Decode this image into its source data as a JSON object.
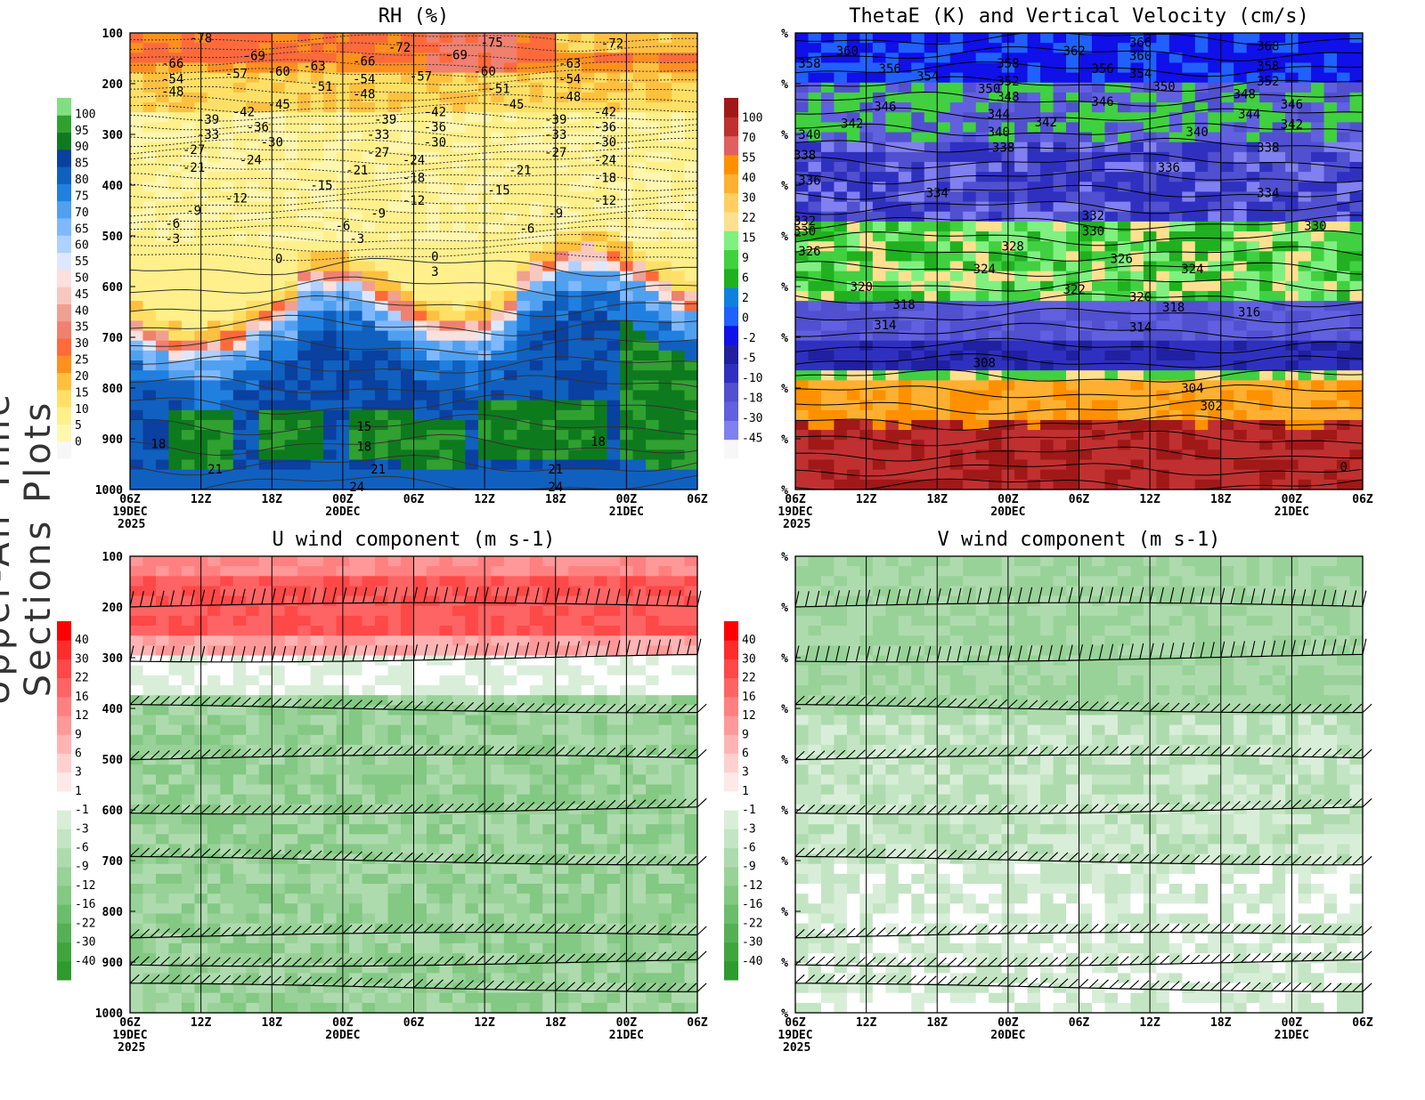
{
  "page": {
    "side_title": "Upper-Air Time Sections Plots"
  },
  "time_axis": {
    "ticks": [
      "06Z",
      "12Z",
      "18Z",
      "00Z",
      "06Z",
      "12Z",
      "18Z",
      "00Z",
      "06Z"
    ],
    "date_labels": [
      "19DEC",
      "",
      "",
      "20DEC",
      "",
      "",
      "",
      "21DEC",
      ""
    ],
    "year_label": "2025"
  },
  "colors": {
    "rh_scale": [
      "#f7f7f7",
      "#fff6b0",
      "#fff08c",
      "#ffe066",
      "#ffc040",
      "#ff9020",
      "#ff6a3a",
      "#f08070",
      "#f0a090",
      "#f8c8c0",
      "#fbe0dc",
      "#dde8ff",
      "#b0d0ff",
      "#80b8ff",
      "#50a0f0",
      "#2080e0",
      "#1060c0",
      "#0a40a0",
      "#0e7a1e",
      "#30a030",
      "#80e080"
    ],
    "thetae_scale": [
      "#f7f7f7",
      "#8080f0",
      "#6060e0",
      "#5050d0",
      "#3030c0",
      "#2020a0",
      "#1010e8",
      "#2060ff",
      "#1080e0",
      "#20b020",
      "#40d040",
      "#80f080",
      "#ffe090",
      "#ffd060",
      "#ffb030",
      "#ff9000",
      "#e06060",
      "#c03030",
      "#a01818"
    ],
    "wind_scale": [
      "#2f9a2f",
      "#3fa63f",
      "#55b055",
      "#6bbd6b",
      "#83c883",
      "#98d298",
      "#aedbae",
      "#c3e5c3",
      "#d9eed9",
      "#ffffff",
      "#ffe8e8",
      "#ffd0d0",
      "#ffb4b4",
      "#ff9898",
      "#ff8080",
      "#ff6464",
      "#ff4848",
      "#ff2c2c",
      "#ff0000"
    ]
  },
  "chart_data": [
    {
      "type": "heatmap",
      "title": "RH (%)",
      "yticks": [
        "100",
        "200",
        "300",
        "400",
        "500",
        "600",
        "700",
        "800",
        "900",
        "1000"
      ],
      "colorbar_labels": [
        "0",
        "5",
        "10",
        "15",
        "20",
        "25",
        "30",
        "35",
        "40",
        "45",
        "50",
        "55",
        "60",
        "65",
        "70",
        "75",
        "80",
        "85",
        "90",
        "95",
        "100"
      ],
      "y_units": "hPa",
      "temperature_contours": [
        {
          "label": "-78",
          "time": 1.0,
          "p": 110
        },
        {
          "label": "-69",
          "time": 1.75,
          "p": 145
        },
        {
          "label": "-66",
          "time": 0.6,
          "p": 160
        },
        {
          "label": "-60",
          "time": 2.1,
          "p": 175
        },
        {
          "label": "-57",
          "time": 1.5,
          "p": 180
        },
        {
          "label": "-63",
          "time": 2.6,
          "p": 165
        },
        {
          "label": "-66",
          "time": 3.3,
          "p": 155
        },
        {
          "label": "-72",
          "time": 3.8,
          "p": 128
        },
        {
          "label": "-69",
          "time": 4.6,
          "p": 143
        },
        {
          "label": "-75",
          "time": 5.1,
          "p": 118
        },
        {
          "label": "-72",
          "time": 6.8,
          "p": 120
        },
        {
          "label": "-60",
          "time": 5.0,
          "p": 175
        },
        {
          "label": "-57",
          "time": 4.1,
          "p": 185
        },
        {
          "label": "-63",
          "time": 6.2,
          "p": 160
        },
        {
          "label": "-54",
          "time": 0.6,
          "p": 190
        },
        {
          "label": "-54",
          "time": 3.3,
          "p": 190
        },
        {
          "label": "-54",
          "time": 6.2,
          "p": 190
        },
        {
          "label": "-51",
          "time": 2.7,
          "p": 205
        },
        {
          "label": "-51",
          "time": 5.2,
          "p": 210
        },
        {
          "label": "-48",
          "time": 0.6,
          "p": 215
        },
        {
          "label": "-48",
          "time": 3.3,
          "p": 220
        },
        {
          "label": "-48",
          "time": 6.2,
          "p": 225
        },
        {
          "label": "-45",
          "time": 2.1,
          "p": 240
        },
        {
          "label": "-45",
          "time": 5.4,
          "p": 240
        },
        {
          "label": "-42",
          "time": 1.6,
          "p": 255
        },
        {
          "label": "-42",
          "time": 4.3,
          "p": 255
        },
        {
          "label": "-42",
          "time": 6.7,
          "p": 255
        },
        {
          "label": "-39",
          "time": 1.1,
          "p": 270
        },
        {
          "label": "-39",
          "time": 3.6,
          "p": 270
        },
        {
          "label": "-39",
          "time": 6.0,
          "p": 270
        },
        {
          "label": "-36",
          "time": 1.8,
          "p": 285
        },
        {
          "label": "-36",
          "time": 4.3,
          "p": 285
        },
        {
          "label": "-36",
          "time": 6.7,
          "p": 285
        },
        {
          "label": "-33",
          "time": 1.1,
          "p": 300
        },
        {
          "label": "-33",
          "time": 3.5,
          "p": 300
        },
        {
          "label": "-33",
          "time": 6.0,
          "p": 300
        },
        {
          "label": "-30",
          "time": 2.0,
          "p": 315
        },
        {
          "label": "-30",
          "time": 4.3,
          "p": 315
        },
        {
          "label": "-30",
          "time": 6.7,
          "p": 315
        },
        {
          "label": "-27",
          "time": 0.9,
          "p": 330
        },
        {
          "label": "-27",
          "time": 3.5,
          "p": 335
        },
        {
          "label": "-27",
          "time": 6.0,
          "p": 335
        },
        {
          "label": "-24",
          "time": 1.7,
          "p": 350
        },
        {
          "label": "-24",
          "time": 4.0,
          "p": 350
        },
        {
          "label": "-24",
          "time": 6.7,
          "p": 350
        },
        {
          "label": "-21",
          "time": 0.9,
          "p": 365
        },
        {
          "label": "-21",
          "time": 3.2,
          "p": 370
        },
        {
          "label": "-21",
          "time": 5.5,
          "p": 370
        },
        {
          "label": "-18",
          "time": 4.0,
          "p": 385
        },
        {
          "label": "-18",
          "time": 6.7,
          "p": 385
        },
        {
          "label": "-15",
          "time": 2.7,
          "p": 400
        },
        {
          "label": "-15",
          "time": 5.2,
          "p": 410
        },
        {
          "label": "-12",
          "time": 1.5,
          "p": 425
        },
        {
          "label": "-12",
          "time": 4.0,
          "p": 430
        },
        {
          "label": "-12",
          "time": 6.7,
          "p": 430
        },
        {
          "label": "-9",
          "time": 0.9,
          "p": 450
        },
        {
          "label": "-9",
          "time": 3.5,
          "p": 455
        },
        {
          "label": "-9",
          "time": 6.0,
          "p": 455
        },
        {
          "label": "-6",
          "time": 0.6,
          "p": 475
        },
        {
          "label": "-6",
          "time": 3.0,
          "p": 480
        },
        {
          "label": "-6",
          "time": 5.6,
          "p": 485
        },
        {
          "label": "-3",
          "time": 0.6,
          "p": 505
        },
        {
          "label": "-3",
          "time": 3.2,
          "p": 505
        },
        {
          "label": "0",
          "time": 2.1,
          "p": 545
        },
        {
          "label": "0",
          "time": 4.3,
          "p": 540
        },
        {
          "label": "3",
          "time": 4.3,
          "p": 570
        },
        {
          "label": "15",
          "time": 3.3,
          "p": 875
        },
        {
          "label": "18",
          "time": 0.4,
          "p": 910
        },
        {
          "label": "18",
          "time": 3.3,
          "p": 915
        },
        {
          "label": "18",
          "time": 6.6,
          "p": 905
        },
        {
          "label": "21",
          "time": 1.2,
          "p": 960
        },
        {
          "label": "21",
          "time": 3.5,
          "p": 960
        },
        {
          "label": "21",
          "time": 6.0,
          "p": 960
        },
        {
          "label": "24",
          "time": 3.2,
          "p": 995
        },
        {
          "label": "24",
          "time": 6.0,
          "p": 995
        }
      ]
    },
    {
      "type": "heatmap",
      "title": "ThetaE (K) and Vertical Velocity (cm/s)",
      "yticks": [
        "%",
        "%",
        "%",
        "%",
        "%",
        "%",
        "%",
        "%",
        "%",
        "%"
      ],
      "colorbar_labels": [
        "-45",
        "-30",
        "-18",
        "-10",
        "-5",
        "-2",
        "0",
        "2",
        "6",
        "9",
        "15",
        "22",
        "30",
        "40",
        "55",
        "70",
        "100"
      ],
      "thetae_contours": [
        {
          "label": "366",
          "time": 7.3,
          "p": 118
        },
        {
          "label": "362",
          "time": 5.9,
          "p": 135
        },
        {
          "label": "360",
          "time": 1.1,
          "p": 135
        },
        {
          "label": "360",
          "time": 7.3,
          "p": 145
        },
        {
          "label": "368",
          "time": 10.0,
          "p": 125
        },
        {
          "label": "358",
          "time": 0.3,
          "p": 160
        },
        {
          "label": "358",
          "time": 4.5,
          "p": 160
        },
        {
          "label": "358",
          "time": 10.0,
          "p": 165
        },
        {
          "label": "356",
          "time": 2.0,
          "p": 170
        },
        {
          "label": "356",
          "time": 6.5,
          "p": 170
        },
        {
          "label": "354",
          "time": 2.8,
          "p": 185
        },
        {
          "label": "354",
          "time": 7.3,
          "p": 180
        },
        {
          "label": "352",
          "time": 4.5,
          "p": 195
        },
        {
          "label": "352",
          "time": 10.0,
          "p": 195
        },
        {
          "label": "350",
          "time": 4.1,
          "p": 210
        },
        {
          "label": "350",
          "time": 7.8,
          "p": 205
        },
        {
          "label": "348",
          "time": 4.5,
          "p": 225
        },
        {
          "label": "348",
          "time": 9.5,
          "p": 220
        },
        {
          "label": "346",
          "time": 1.9,
          "p": 245
        },
        {
          "label": "346",
          "time": 6.5,
          "p": 235
        },
        {
          "label": "346",
          "time": 10.5,
          "p": 240
        },
        {
          "label": "344",
          "time": 4.3,
          "p": 260
        },
        {
          "label": "344",
          "time": 9.6,
          "p": 260
        },
        {
          "label": "342",
          "time": 1.2,
          "p": 278
        },
        {
          "label": "342",
          "time": 5.3,
          "p": 275
        },
        {
          "label": "342",
          "time": 10.5,
          "p": 280
        },
        {
          "label": "340",
          "time": 0.3,
          "p": 300
        },
        {
          "label": "340",
          "time": 4.3,
          "p": 295
        },
        {
          "label": "340",
          "time": 8.5,
          "p": 295
        },
        {
          "label": "338",
          "time": 0.2,
          "p": 340
        },
        {
          "label": "338",
          "time": 4.4,
          "p": 325
        },
        {
          "label": "338",
          "time": 10.0,
          "p": 325
        },
        {
          "label": "336",
          "time": 7.9,
          "p": 365
        },
        {
          "label": "336",
          "time": 0.3,
          "p": 390
        },
        {
          "label": "334",
          "time": 3.0,
          "p": 415
        },
        {
          "label": "334",
          "time": 10.0,
          "p": 415
        },
        {
          "label": "332",
          "time": 0.2,
          "p": 470
        },
        {
          "label": "332",
          "time": 6.3,
          "p": 460
        },
        {
          "label": "330",
          "time": 0.2,
          "p": 490
        },
        {
          "label": "330",
          "time": 6.3,
          "p": 490
        },
        {
          "label": "330",
          "time": 11.0,
          "p": 480
        },
        {
          "label": "328",
          "time": 4.6,
          "p": 520
        },
        {
          "label": "326",
          "time": 0.3,
          "p": 530
        },
        {
          "label": "326",
          "time": 6.9,
          "p": 545
        },
        {
          "label": "324",
          "time": 4.0,
          "p": 565
        },
        {
          "label": "324",
          "time": 8.4,
          "p": 565
        },
        {
          "label": "322",
          "time": 5.9,
          "p": 605
        },
        {
          "label": "320",
          "time": 1.4,
          "p": 600
        },
        {
          "label": "320",
          "time": 7.3,
          "p": 620
        },
        {
          "label": "318",
          "time": 2.3,
          "p": 635
        },
        {
          "label": "318",
          "time": 8.0,
          "p": 640
        },
        {
          "label": "316",
          "time": 9.6,
          "p": 650
        },
        {
          "label": "314",
          "time": 1.9,
          "p": 675
        },
        {
          "label": "314",
          "time": 7.3,
          "p": 680
        },
        {
          "label": "308",
          "time": 4.0,
          "p": 750
        },
        {
          "label": "304",
          "time": 8.4,
          "p": 800
        },
        {
          "label": "302",
          "time": 8.8,
          "p": 835
        },
        {
          "label": "0",
          "time": 11.6,
          "p": 955
        }
      ]
    },
    {
      "type": "heatmap",
      "title": "U wind component (m s-1)",
      "yticks": [
        "100",
        "200",
        "300",
        "400",
        "500",
        "600",
        "700",
        "800",
        "900",
        "1000"
      ],
      "colorbar_labels": [
        "-40",
        "-30",
        "-22",
        "-16",
        "-12",
        "-9",
        "-6",
        "-3",
        "-1",
        "1",
        "3",
        "6",
        "9",
        "12",
        "16",
        "22",
        "30",
        "40"
      ],
      "wind_barb_levels_hpa": [
        200,
        300,
        400,
        500,
        600,
        700,
        850,
        900,
        950
      ]
    },
    {
      "type": "heatmap",
      "title": "V wind component (m s-1)",
      "yticks": [
        "%",
        "%",
        "%",
        "%",
        "%",
        "%",
        "%",
        "%",
        "%",
        "%"
      ],
      "colorbar_labels": [
        "-40",
        "-30",
        "-22",
        "-16",
        "-12",
        "-9",
        "-6",
        "-3",
        "-1",
        "1",
        "3",
        "6",
        "9",
        "12",
        "16",
        "22",
        "30",
        "40"
      ],
      "wind_barb_levels_hpa": [
        200,
        300,
        400,
        500,
        600,
        700,
        850,
        900,
        950
      ]
    }
  ]
}
